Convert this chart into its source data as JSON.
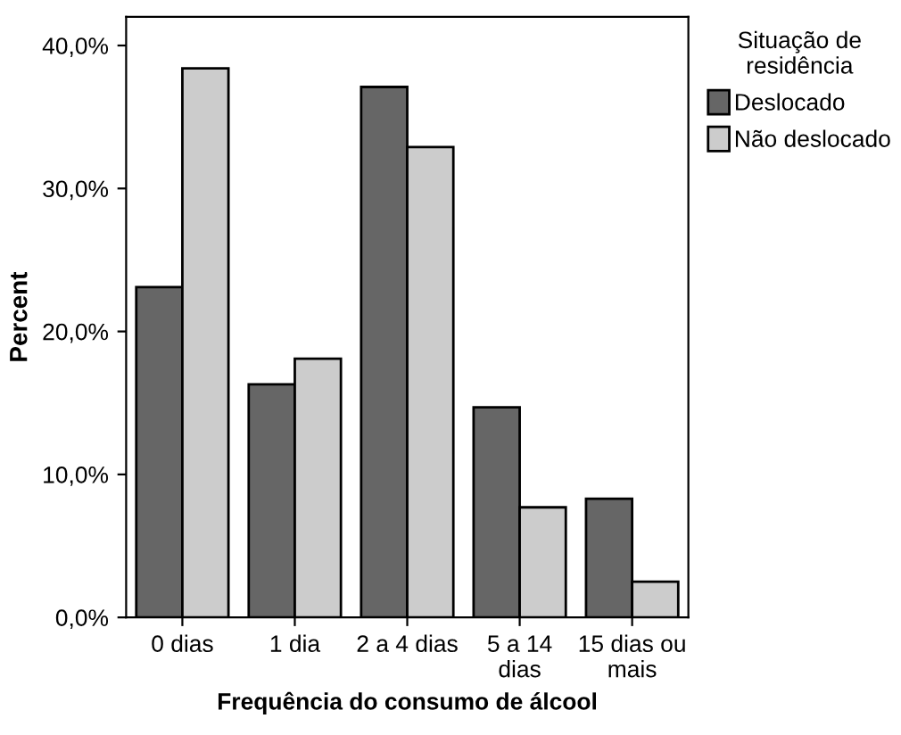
{
  "chart_data": {
    "type": "bar",
    "xlabel": "Frequência do consumo de álcool",
    "ylabel": "Percent",
    "legend_title": "Situação de\nresidência",
    "categories": [
      "0 dias",
      "1 dia",
      "2 a 4 dias",
      "5 a 14\ndias",
      "15 dias ou\nmais"
    ],
    "series": [
      {
        "name": "Deslocado",
        "color": "#666666",
        "values": [
          23.1,
          16.3,
          37.1,
          14.7,
          8.3
        ]
      },
      {
        "name": "Não deslocado",
        "color": "#cccccc",
        "values": [
          38.4,
          18.1,
          32.9,
          7.7,
          2.5
        ]
      }
    ],
    "ylim": [
      0,
      42
    ],
    "yticks": [
      {
        "value": 0,
        "label": "0,0%"
      },
      {
        "value": 10,
        "label": "10,0%"
      },
      {
        "value": 20,
        "label": "20,0%"
      },
      {
        "value": 30,
        "label": "30,0%"
      },
      {
        "value": 40,
        "label": "40,0%"
      }
    ],
    "grid": false,
    "legend": "top right"
  }
}
